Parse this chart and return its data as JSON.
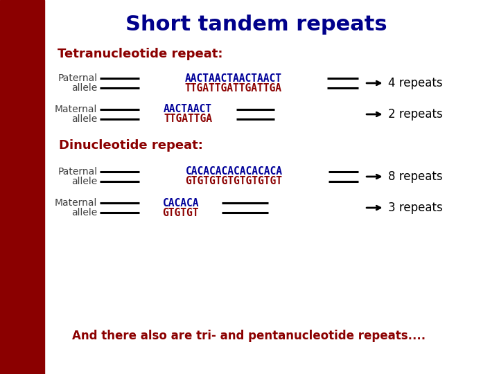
{
  "title": "Short tandem repeats",
  "title_color": "#00008B",
  "title_fontsize": 22,
  "bg_color": "#FFFFFF",
  "sidebar_color": "#8B0000",
  "section1_label": "Tetranucleotide repeat:",
  "section2_label": "Dinucleotide repeat:",
  "section_label_color": "#8B0000",
  "section_label_fontsize": 13,
  "allele_label_color": "#404040",
  "allele_label_fontsize": 10,
  "seq_color_blue": "#000099",
  "seq_color_red": "#8B0000",
  "repeat_text_color": "#000000",
  "repeat_fontsize": 12,
  "line_color": "#000000",
  "footer_text": "And there also are tri- and pentanucleotide repeats....",
  "footer_color": "#8B0000",
  "footer_fontsize": 12
}
